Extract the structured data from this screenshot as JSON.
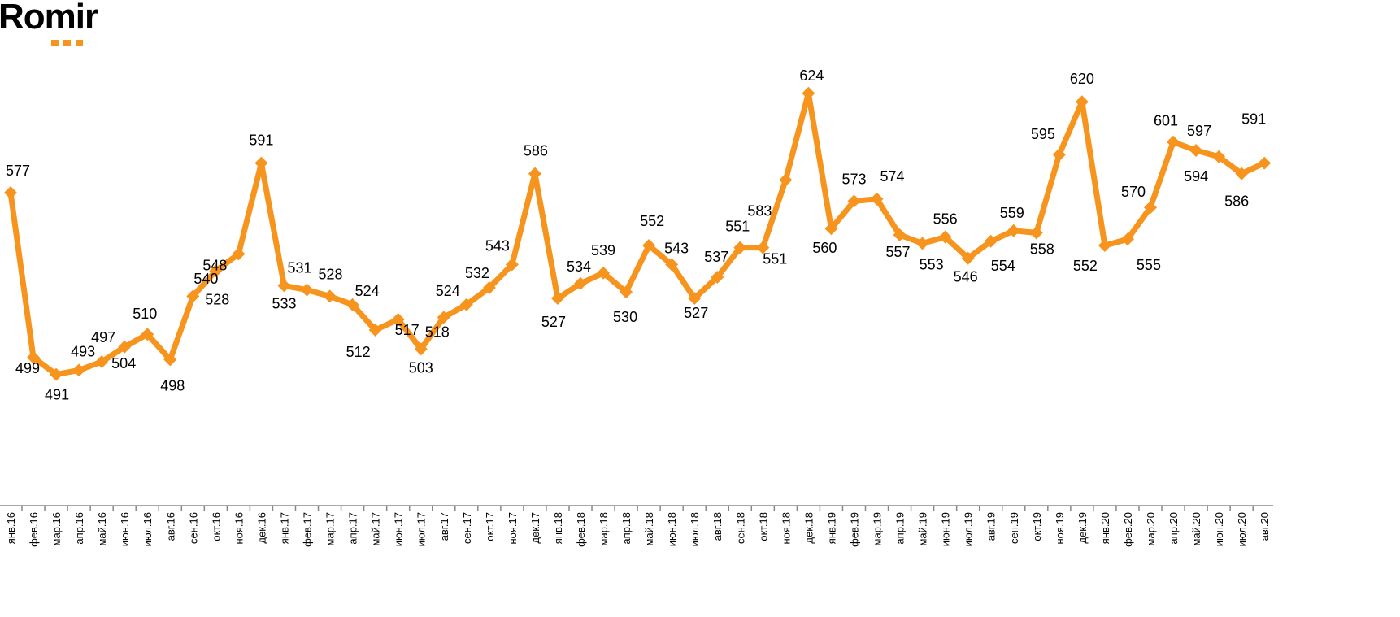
{
  "logo": {
    "text": "Romir",
    "accent": "#F7941D"
  },
  "chart_data": {
    "type": "line",
    "title": "",
    "xlabel": "",
    "ylabel": "",
    "grid": false,
    "legend": "none",
    "line_color": "#F7941D",
    "marker": "diamond",
    "categories": [
      "янв.16",
      "фев.16",
      "мар.16",
      "апр.16",
      "май.16",
      "июн.16",
      "июл.16",
      "авг.16",
      "сен.16",
      "окт.16",
      "ноя.16",
      "дек.16",
      "янв.17",
      "фев.17",
      "мар.17",
      "апр.17",
      "май.17",
      "июн.17",
      "июл.17",
      "авг.17",
      "сен.17",
      "окт.17",
      "ноя.17",
      "дек.17",
      "янв.18",
      "фев.18",
      "мар.18",
      "апр.18",
      "май.18",
      "июн.18",
      "июл.18",
      "авг.18",
      "сен.18",
      "окт.18",
      "ноя.18",
      "дек.18",
      "янв.19",
      "фев.19",
      "мар.19",
      "апр.19",
      "май.19",
      "июн.19",
      "июл.19",
      "авг.19",
      "сен.19",
      "окт.19",
      "ноя.19",
      "дек.19",
      "янв.20",
      "фев.20",
      "мар.20",
      "апр.20",
      "май.20",
      "июн.20",
      "июл.20",
      "авг.20"
    ],
    "values": [
      577,
      499,
      491,
      493,
      497,
      504,
      510,
      498,
      528,
      540,
      548,
      591,
      533,
      531,
      528,
      524,
      512,
      517,
      503,
      518,
      524,
      532,
      543,
      586,
      527,
      534,
      539,
      530,
      552,
      543,
      527,
      537,
      551,
      551,
      583,
      624,
      560,
      573,
      574,
      557,
      553,
      556,
      546,
      554,
      559,
      558,
      595,
      620,
      552,
      555,
      570,
      601,
      597,
      594,
      586,
      591
    ]
  }
}
